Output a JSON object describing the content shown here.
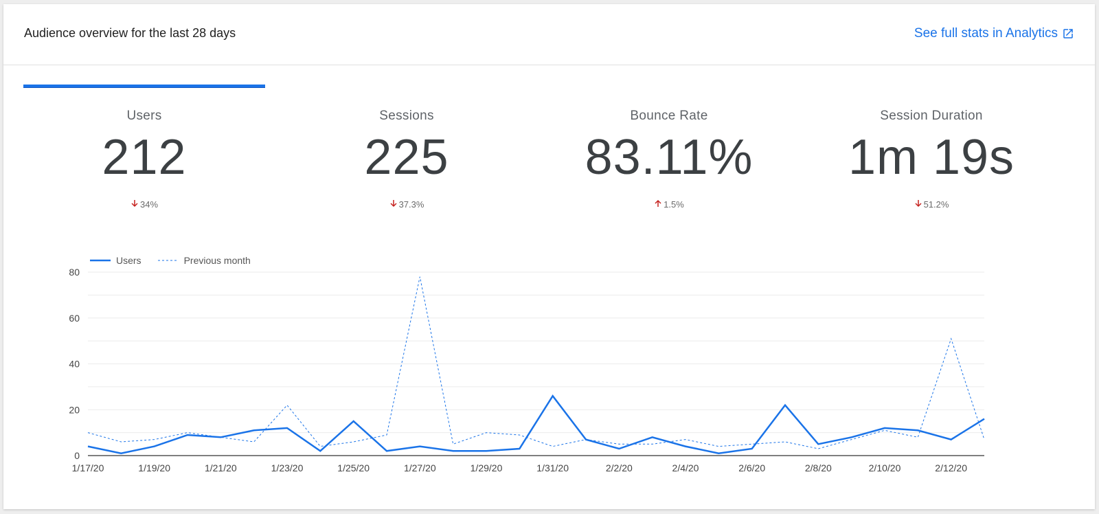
{
  "header": {
    "title": "Audience overview for the last 28 days",
    "link_label": "See full stats in Analytics",
    "link_icon": "open-in-new-icon"
  },
  "colors": {
    "accent": "#1a73e8",
    "decrease": "#c5221f",
    "increase": "#c5221f",
    "value_text": "#3c4043"
  },
  "metrics": [
    {
      "label": "Users",
      "value": "212",
      "change": "34%",
      "direction": "down",
      "selected": true
    },
    {
      "label": "Sessions",
      "value": "225",
      "change": "37.3%",
      "direction": "down",
      "selected": false
    },
    {
      "label": "Bounce Rate",
      "value": "83.11%",
      "change": "1.5%",
      "direction": "up",
      "selected": false
    },
    {
      "label": "Session Duration",
      "value": "1m 19s",
      "change": "51.2%",
      "direction": "down",
      "selected": false
    }
  ],
  "chart_data": {
    "type": "line",
    "x": [
      "1/17/20",
      "1/18/20",
      "1/19/20",
      "1/20/20",
      "1/21/20",
      "1/22/20",
      "1/23/20",
      "1/24/20",
      "1/25/20",
      "1/26/20",
      "1/27/20",
      "1/28/20",
      "1/29/20",
      "1/30/20",
      "1/31/20",
      "2/1/20",
      "2/2/20",
      "2/3/20",
      "2/4/20",
      "2/5/20",
      "2/6/20",
      "2/7/20",
      "2/8/20",
      "2/9/20",
      "2/10/20",
      "2/11/20",
      "2/12/20",
      "2/13/20"
    ],
    "x_tick_labels": [
      "1/17/20",
      "1/19/20",
      "1/21/20",
      "1/23/20",
      "1/25/20",
      "1/27/20",
      "1/29/20",
      "1/31/20",
      "2/2/20",
      "2/4/20",
      "2/6/20",
      "2/8/20",
      "2/10/20",
      "2/12/20"
    ],
    "series": [
      {
        "name": "Users",
        "style": "solid",
        "color": "#1a73e8",
        "values": [
          4,
          1,
          4,
          9,
          8,
          11,
          12,
          2,
          15,
          2,
          4,
          2,
          2,
          3,
          26,
          7,
          3,
          8,
          4,
          1,
          3,
          22,
          5,
          8,
          12,
          11,
          7,
          16
        ]
      },
      {
        "name": "Previous month",
        "style": "dashed",
        "color": "#1a73e8",
        "values": [
          10,
          6,
          7,
          10,
          8,
          6,
          22,
          4,
          6,
          9,
          78,
          5,
          10,
          9,
          4,
          7,
          5,
          5,
          7,
          4,
          5,
          6,
          3,
          7,
          11,
          8,
          51,
          7
        ]
      }
    ],
    "yticks": [
      0,
      20,
      40,
      60,
      80
    ],
    "ylim": [
      0,
      80
    ],
    "grid": true,
    "legend_position": "top-left"
  }
}
